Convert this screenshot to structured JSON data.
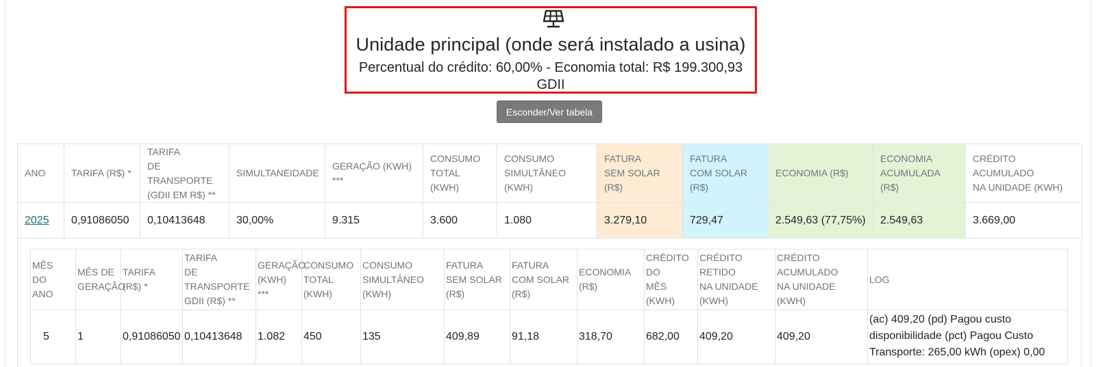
{
  "header": {
    "icon": "solar-panel-icon",
    "title": "Unidade principal (onde será instalado a usina)",
    "credit_line": "Percentual do crédito: 60,00% - Economia total: R$ 199.300,93",
    "mode": "GDII",
    "border_color": "#e0161b"
  },
  "toggle_button": {
    "label": "Esconder/Ver tabela"
  },
  "year_table": {
    "columns": [
      "ANO",
      "TARIFA (R$) *",
      "TARIFA\nDE TRANSPORTE\n(GDII EM R$) **",
      "SIMULTANEIDADE",
      "GERAÇÃO (KWH)\n***",
      "CONSUMO\nTOTAL (KWH)",
      "CONSUMO\nSIMULTÂNEO\n(KWH)",
      "FATURA\nSEM SOLAR\n(R$)",
      "FATURA\nCOM SOLAR\n(R$)",
      "ECONOMIA (R$)",
      "ECONOMIA\nACUMULADA (R$)",
      "CRÉDITO\nACUMULADO\nNA UNIDADE (KWH)"
    ],
    "rows": [
      {
        "year": "2025",
        "tarifa": "0,91086050",
        "tarifa_transporte": "0,10413648",
        "simultaneidade": "30,00%",
        "geracao": "9.315",
        "consumo_total": "3.600",
        "consumo_simultaneo": "1.080",
        "fatura_sem_solar": "3.279,10",
        "fatura_com_solar": "729,47",
        "economia": "2.549,63 (77,75%)",
        "economia_acumulada": "2.549,63",
        "credito_acumulado": "3.669,00"
      }
    ],
    "colors": {
      "sem_solar": "#fdebd3",
      "com_solar": "#d1f3fb",
      "economia": "#e3f4d6"
    }
  },
  "month_table": {
    "columns": [
      "MÊS\nDO\nANO",
      "MÊS DE\nGERAÇÃO",
      "TARIFA\n(R$) *",
      "TARIFA\nDE\nTRANSPORTE\nGDII (R$) **",
      "GERAÇÃO\n(KWH) ***",
      "CONSUMO\nTOTAL\n(KWH)",
      "CONSUMO\nSIMULTÂNEO\n(KWH)",
      "FATURA\nSEM SOLAR\n(R$)",
      "FATURA\nCOM SOLAR\n(R$)",
      "ECONOMIA\n(R$)",
      "CRÉDITO\nDO\nMÊS (KWH)",
      "CRÉDITO RETIDO\nNA UNIDADE\n(KWH)",
      "CRÉDITO\nACUMULADO\nNA UNIDADE (KWH)",
      "LOG"
    ],
    "rows": [
      {
        "mes_ano": "5",
        "mes_geracao": "1",
        "tarifa": "0,91086050",
        "tarifa_transporte": "0,10413648",
        "geracao": "1.082",
        "consumo_total": "450",
        "consumo_simultaneo": "135",
        "fatura_sem_solar": "409,89",
        "fatura_com_solar": "91,18",
        "economia": "318,70",
        "credito_mes": "682,00",
        "credito_retido": "409,20",
        "credito_acumulado": "409,20",
        "log": "(ac) 409,20 (pd) Pagou custo disponibilidade (pct) Pagou Custo Transporte: 265,00 kWh (opex) 0,00"
      }
    ]
  }
}
